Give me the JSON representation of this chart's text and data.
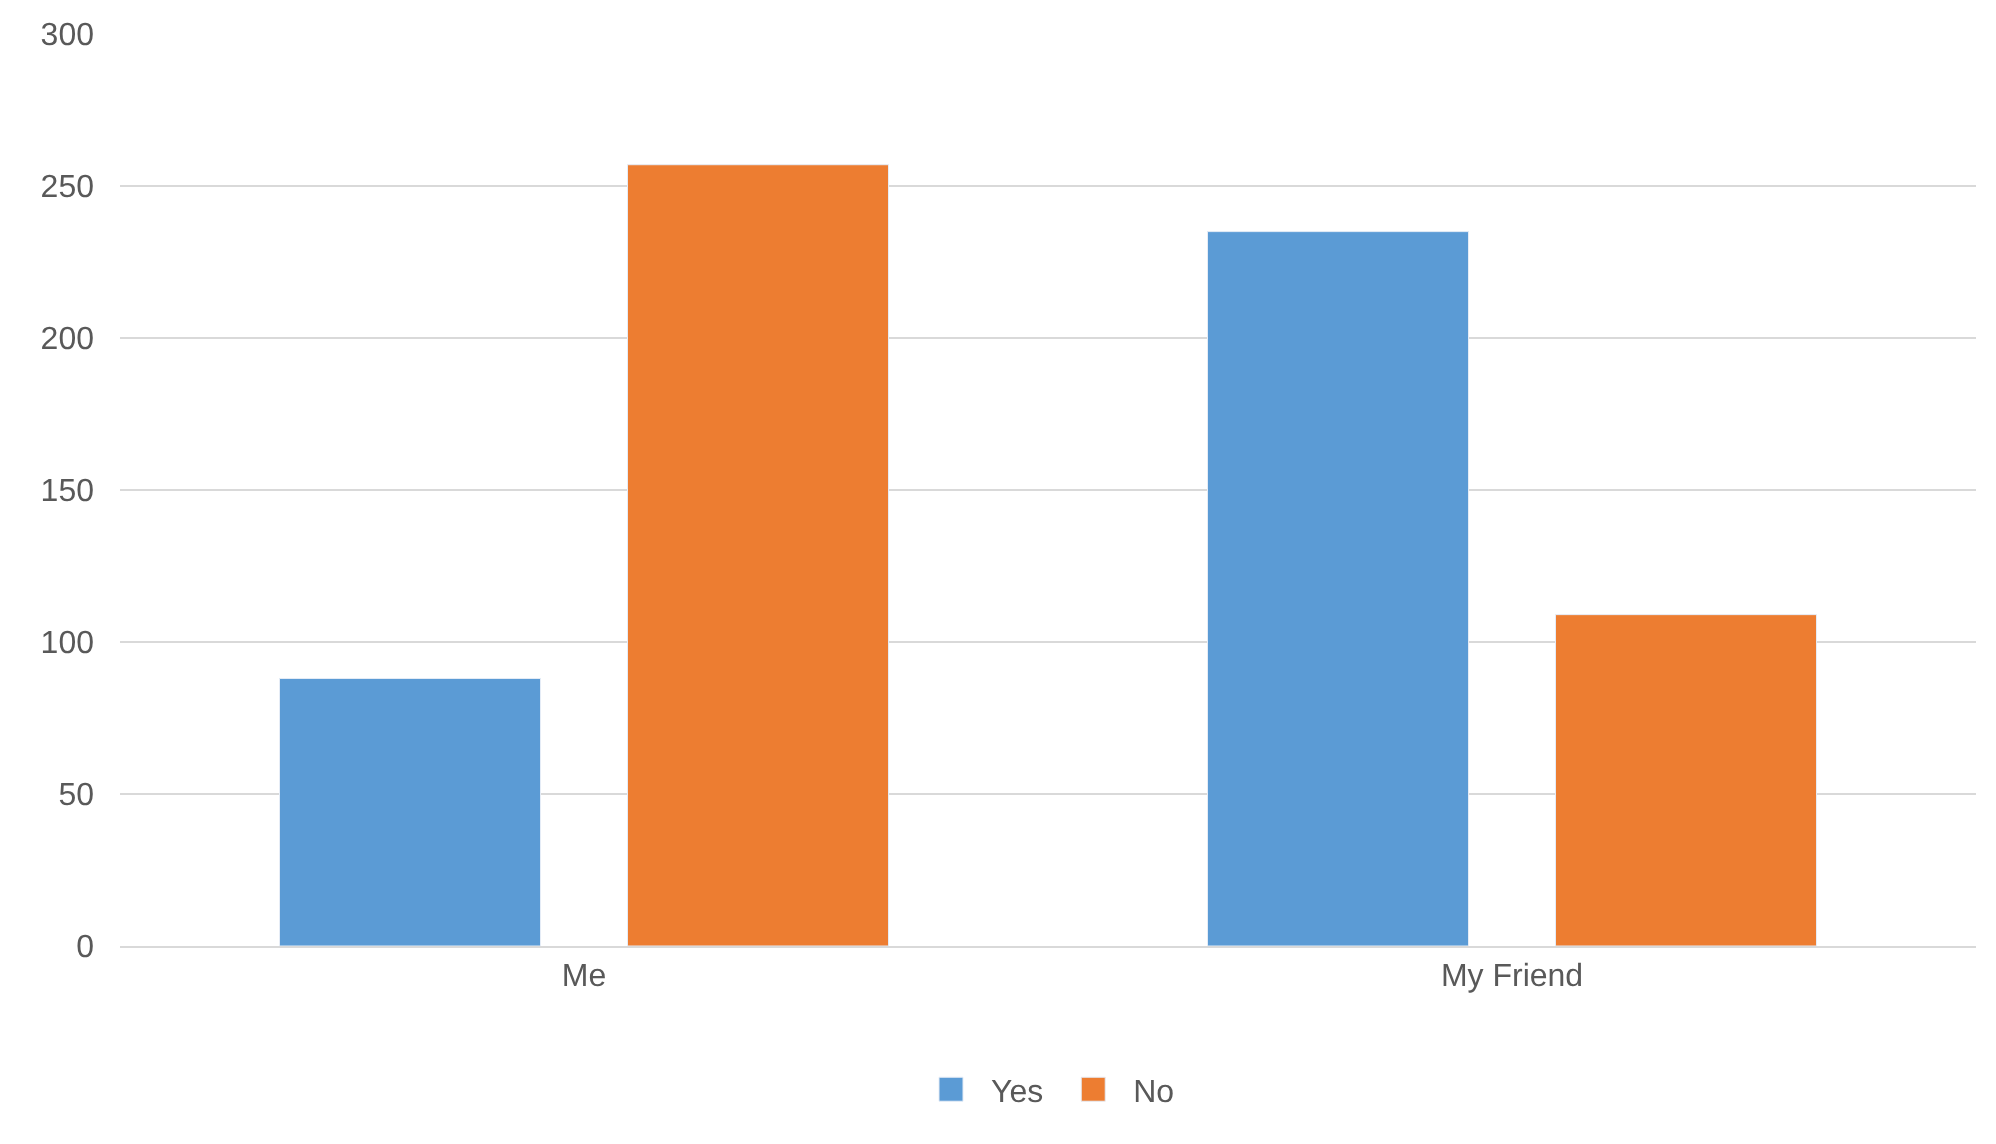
{
  "chart_data": {
    "type": "bar",
    "categories": [
      "Me",
      "My Friend"
    ],
    "series": [
      {
        "name": "Yes",
        "color": "#5b9bd5",
        "values": [
          88,
          235
        ]
      },
      {
        "name": "No",
        "color": "#ed7d31",
        "values": [
          257,
          109
        ]
      }
    ],
    "ylim": [
      0,
      300
    ],
    "yticks": [
      0,
      50,
      100,
      150,
      200,
      250,
      300
    ],
    "grid": "y",
    "legend": "bottom"
  }
}
